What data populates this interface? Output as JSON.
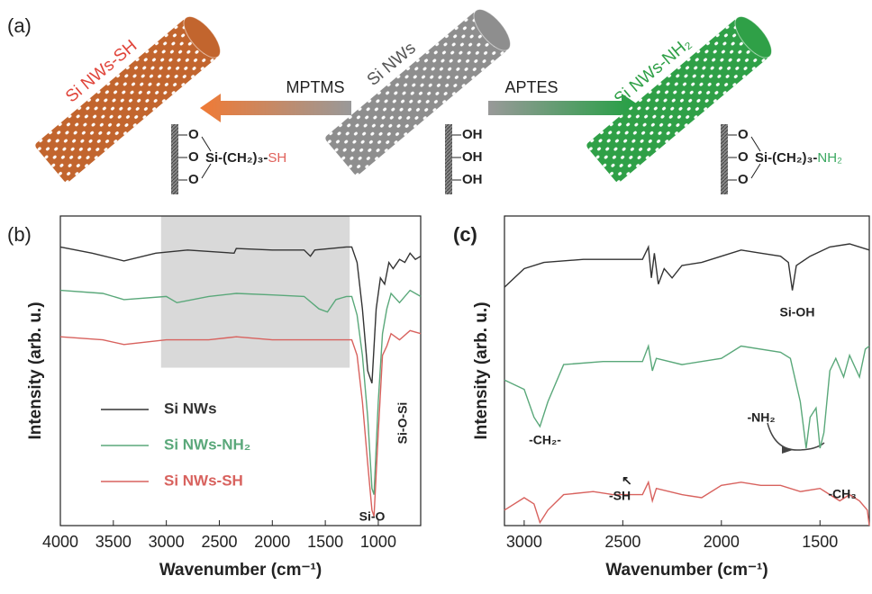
{
  "schematic": {
    "panel_label": "(a)",
    "tubes": [
      {
        "label": "Si NWs-SH",
        "color": "#c2652e",
        "label_color": "#e0443a"
      },
      {
        "label": "Si NWs",
        "color": "#8e8e8e",
        "label_color": "#555555"
      },
      {
        "label": "Si NWs-NH₂",
        "color": "#2fa047",
        "label_color": "#2fa047"
      }
    ],
    "reagents": [
      "MPTMS",
      "APTES"
    ],
    "surfaces": [
      {
        "groups": [
          "O",
          "O",
          "O"
        ],
        "chain": "Si-(CH₂)₃-",
        "end": "SH",
        "end_color": "#e0605a"
      },
      {
        "groups": [
          "OH",
          "OH",
          "OH"
        ]
      },
      {
        "groups": [
          "O",
          "O",
          "O"
        ],
        "chain": "Si-(CH₂)₃-",
        "end": "NH₂",
        "end_color": "#3aa860"
      }
    ]
  },
  "chart_data": [
    {
      "type": "line",
      "panel_label": "(b)",
      "x_label": "Wavenumber (cm⁻¹)",
      "y_label": "Intensity (arb. u.)",
      "xlim": [
        4000,
        600
      ],
      "xticks": [
        4000,
        3500,
        3000,
        2500,
        2000,
        1500,
        1000
      ],
      "ylim": [
        0,
        100
      ],
      "legend": "lower left",
      "shade": {
        "x": [
          3050,
          1270
        ],
        "y": [
          51,
          100
        ],
        "color": "#d9d9d9"
      },
      "annotations": [
        "Si-O",
        "Si-O-Si"
      ],
      "series": [
        {
          "name": "Si NWs",
          "color": "#333333",
          "x": [
            4000,
            3700,
            3400,
            3100,
            2800,
            2360,
            2340,
            2000,
            1700,
            1640,
            1600,
            1300,
            1250,
            1200,
            1150,
            1100,
            1060,
            1020,
            980,
            940,
            900,
            860,
            800,
            750,
            700,
            650,
            600
          ],
          "values": [
            90,
            88,
            85.5,
            88,
            89,
            88,
            89.5,
            89,
            89,
            87,
            89,
            90,
            90,
            85,
            70,
            50,
            46,
            70,
            80,
            78,
            85,
            83,
            86,
            85,
            88,
            86,
            87
          ]
        },
        {
          "name": "Si NWs-NH₂",
          "color": "#5aa87a",
          "x": [
            4000,
            3600,
            3400,
            3000,
            2900,
            2600,
            2340,
            2000,
            1700,
            1560,
            1480,
            1400,
            1300,
            1250,
            1200,
            1150,
            1100,
            1060,
            1040,
            1000,
            960,
            920,
            880,
            800,
            700,
            600
          ],
          "values": [
            76,
            75,
            73,
            74,
            72,
            74,
            75,
            74.5,
            74,
            70,
            69,
            73,
            74,
            74,
            68,
            55,
            35,
            12,
            10,
            40,
            62,
            70,
            75,
            72,
            76,
            74
          ]
        },
        {
          "name": "Si NWs-SH",
          "color": "#d8625e",
          "x": [
            4000,
            3600,
            3400,
            3000,
            2600,
            2340,
            2000,
            1500,
            1250,
            1200,
            1150,
            1100,
            1060,
            1040,
            1000,
            960,
            920,
            880,
            800,
            700,
            600
          ],
          "values": [
            61,
            60,
            58.5,
            60,
            60,
            61,
            60,
            60,
            60,
            55,
            40,
            20,
            5,
            3,
            30,
            55,
            58,
            62,
            60,
            63,
            62
          ]
        }
      ]
    },
    {
      "type": "line",
      "panel_label": "(c)",
      "x_label": "Wavenumber (cm⁻¹)",
      "y_label": "Intensity (arb. u.)",
      "xlim": [
        3100,
        1250
      ],
      "xticks": [
        3000,
        2500,
        2000,
        1500
      ],
      "ylim": [
        0,
        100
      ],
      "annotations": [
        "Si-OH",
        "-CH₂-",
        "-NH₂",
        "-SH",
        "-CH₃"
      ],
      "series": [
        {
          "color": "#333333",
          "x": [
            3100,
            3000,
            2900,
            2700,
            2400,
            2370,
            2355,
            2340,
            2320,
            2290,
            2250,
            2200,
            2100,
            2000,
            1900,
            1800,
            1700,
            1660,
            1640,
            1620,
            1550,
            1450,
            1350,
            1250
          ],
          "values": [
            77,
            83,
            85,
            86,
            86,
            90,
            80,
            88,
            78,
            83,
            80,
            84,
            85,
            87,
            89,
            88,
            87,
            85,
            76,
            84,
            87,
            90,
            91,
            89
          ]
        },
        {
          "color": "#5aa87a",
          "x": [
            3100,
            3000,
            2950,
            2920,
            2880,
            2800,
            2600,
            2400,
            2370,
            2350,
            2330,
            2200,
            2000,
            1900,
            1700,
            1650,
            1600,
            1570,
            1550,
            1520,
            1500,
            1480,
            1450,
            1420,
            1380,
            1350,
            1300,
            1270,
            1250
          ],
          "values": [
            47,
            44,
            35,
            32,
            40,
            52,
            53,
            53,
            58,
            50,
            54,
            52,
            54,
            58,
            56,
            54,
            40,
            25,
            35,
            38,
            25,
            30,
            50,
            54,
            48,
            55,
            48,
            57,
            58
          ]
        },
        {
          "color": "#d8625e",
          "x": [
            3100,
            3000,
            2950,
            2920,
            2880,
            2800,
            2650,
            2550,
            2400,
            2370,
            2350,
            2330,
            2200,
            2100,
            2000,
            1900,
            1800,
            1700,
            1600,
            1500,
            1450,
            1400,
            1350,
            1300,
            1260,
            1250
          ],
          "values": [
            5,
            9,
            7,
            1,
            5,
            10,
            11,
            10,
            10,
            14,
            8,
            12,
            10,
            9,
            13,
            14,
            13,
            13,
            11,
            12,
            10,
            8,
            10,
            8,
            5,
            0
          ]
        }
      ]
    }
  ]
}
